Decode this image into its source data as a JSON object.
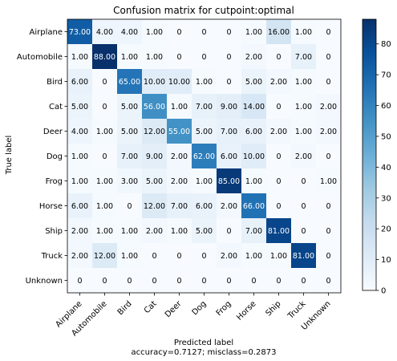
{
  "chart_data": {
    "type": "heatmap",
    "title": "Confusion matrix for cutpoint:optimal",
    "ylabel": "True label",
    "xlabel": "Predicted label",
    "xlabel_line2": "accuracy=0.7127; misclass=0.2873",
    "x_categories": [
      "Airplane",
      "Automobile",
      "Bird",
      "Cat",
      "Deer",
      "Dog",
      "Frog",
      "Horse",
      "Ship",
      "Truck",
      "Unknown"
    ],
    "y_categories": [
      "Airplane",
      "Automobile",
      "Bird",
      "Cat",
      "Deer",
      "Dog",
      "Frog",
      "Horse",
      "Ship",
      "Truck",
      "Unknown"
    ],
    "values": [
      [
        73,
        4,
        4,
        1,
        0,
        0,
        0,
        1,
        16,
        1,
        0
      ],
      [
        1,
        88,
        1,
        1,
        0,
        0,
        0,
        2,
        0,
        7,
        0
      ],
      [
        6,
        0,
        65,
        10,
        10,
        1,
        0,
        5,
        2,
        1,
        0
      ],
      [
        5,
        0,
        5,
        56,
        1,
        7,
        9,
        14,
        0,
        1,
        2
      ],
      [
        4,
        1,
        5,
        12,
        55,
        5,
        7,
        6,
        2,
        1,
        2
      ],
      [
        1,
        0,
        7,
        9,
        2,
        62,
        6,
        10,
        0,
        2,
        0
      ],
      [
        1,
        1,
        3,
        5,
        2,
        1,
        85,
        1,
        0,
        0,
        1
      ],
      [
        6,
        1,
        0,
        12,
        7,
        6,
        2,
        66,
        0,
        0,
        0
      ],
      [
        2,
        1,
        1,
        2,
        1,
        5,
        0,
        7,
        81,
        0,
        0
      ],
      [
        2,
        12,
        1,
        0,
        0,
        0,
        2,
        1,
        1,
        81,
        0
      ],
      [
        0,
        0,
        0,
        0,
        0,
        0,
        0,
        0,
        0,
        0,
        0
      ]
    ],
    "cell_labels": [
      [
        "73.00",
        "4.00",
        "4.00",
        "1.00",
        "0",
        "0",
        "0",
        "1.00",
        "16.00",
        "1.00",
        "0"
      ],
      [
        "1.00",
        "88.00",
        "1.00",
        "1.00",
        "0",
        "0",
        "0",
        "2.00",
        "0",
        "7.00",
        "0"
      ],
      [
        "6.00",
        "0",
        "65.00",
        "10.00",
        "10.00",
        "1.00",
        "0",
        "5.00",
        "2.00",
        "1.00",
        "0"
      ],
      [
        "5.00",
        "0",
        "5.00",
        "56.00",
        "1.00",
        "7.00",
        "9.00",
        "14.00",
        "0",
        "1.00",
        "2.00"
      ],
      [
        "4.00",
        "1.00",
        "5.00",
        "12.00",
        "55.00",
        "5.00",
        "7.00",
        "6.00",
        "2.00",
        "1.00",
        "2.00"
      ],
      [
        "1.00",
        "0",
        "7.00",
        "9.00",
        "2.00",
        "62.00",
        "6.00",
        "10.00",
        "0",
        "2.00",
        "0"
      ],
      [
        "1.00",
        "1.00",
        "3.00",
        "5.00",
        "2.00",
        "1.00",
        "85.00",
        "1.00",
        "0",
        "0",
        "1.00"
      ],
      [
        "6.00",
        "1.00",
        "0",
        "12.00",
        "7.00",
        "6.00",
        "2.00",
        "66.00",
        "0",
        "0",
        "0"
      ],
      [
        "2.00",
        "1.00",
        "1.00",
        "2.00",
        "1.00",
        "5.00",
        "0",
        "7.00",
        "81.00",
        "0",
        "0"
      ],
      [
        "2.00",
        "12.00",
        "1.00",
        "0",
        "0",
        "0",
        "2.00",
        "1.00",
        "1.00",
        "81.00",
        "0"
      ],
      [
        "0",
        "0",
        "0",
        "0",
        "0",
        "0",
        "0",
        "0",
        "0",
        "0",
        "0"
      ]
    ],
    "colormap": "Blues",
    "color_range": [
      0,
      88
    ],
    "colorbar_ticks": [
      0,
      10,
      20,
      30,
      40,
      50,
      60,
      70,
      80
    ],
    "colorbar_tick_labels": [
      "0",
      "10",
      "20",
      "30",
      "40",
      "50",
      "60",
      "70",
      "80"
    ],
    "text_color_light": "#ffffff",
    "text_color_dark": "#000000",
    "grid": false
  }
}
